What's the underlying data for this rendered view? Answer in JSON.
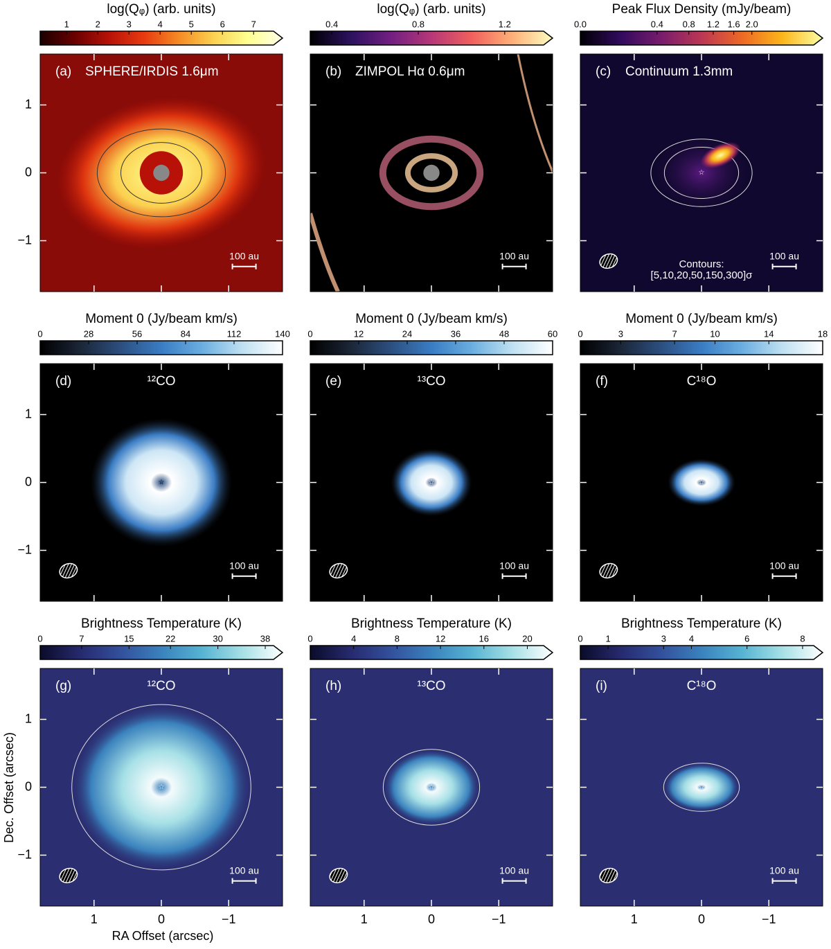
{
  "axes": {
    "xlabel": "RA Offset (arcsec)",
    "ylabel": "Dec. Offset (arcsec)",
    "xlim": [
      1.8,
      -1.8
    ],
    "ylim": [
      -1.75,
      1.75
    ],
    "xticks": [
      1,
      0,
      {
        "value": -1,
        "label": "−1"
      }
    ],
    "yticks": [
      1,
      0,
      {
        "value": -1,
        "label": "−1"
      }
    ]
  },
  "panels": [
    {
      "letter": "(a)",
      "title": "SPHERE/IRDIS 1.6μm",
      "scale_bar": "100 au",
      "beam": false,
      "colorbar": {
        "label": "log(Qᵩ) (arb. units)",
        "clim": [
          0.15,
          7.64
        ],
        "stretch": "linear",
        "extend": true,
        "cmap": [
          "#1a0000",
          "#6a0000",
          "#b81208",
          "#e83a10",
          "#f58a25",
          "#fbd050",
          "#ffff90",
          "#ffffe8"
        ],
        "ticks": [
          1,
          2,
          3,
          4,
          5,
          6,
          7
        ]
      }
    },
    {
      "letter": "(b)",
      "title": "ZIMPOL Hα 0.6μm",
      "scale_bar": "100 au",
      "beam": false,
      "colorbar": {
        "label": "log(Qᵩ) (arb. units)",
        "clim": [
          0.3,
          1.38
        ],
        "stretch": "linear",
        "extend": true,
        "cmap": [
          "#000004",
          "#2c115f",
          "#721f81",
          "#b73779",
          "#f1605d",
          "#feb078",
          "#fcfdbf"
        ],
        "ticks": [
          0.4,
          0.8,
          1.2
        ]
      }
    },
    {
      "letter": "(c)",
      "title": "Continuum 1.3mm",
      "scale_bar": "100 au",
      "beam": true,
      "contours_note": [
        "Contours:",
        "[5,10,20,50,150,300]σ"
      ],
      "colorbar": {
        "label": "Peak Flux Density (mJy/beam)",
        "clim": [
          0,
          3.7
        ],
        "stretch": "sqrt",
        "extend": true,
        "cmap": [
          "#000004",
          "#320a5e",
          "#781c6d",
          "#bc3754",
          "#ed6925",
          "#fbb61a",
          "#fcffa4"
        ],
        "ticks": [
          {
            "value": 0,
            "label": "0.0"
          },
          0.4,
          0.8,
          1.2,
          1.6,
          {
            "value": 2,
            "label": "2.0"
          }
        ]
      }
    },
    {
      "letter": "(d)",
      "title": "¹²CO",
      "scale_bar": "100 au",
      "beam": true,
      "colorbar": {
        "label": "Moment 0 (Jy/beam km/s)",
        "clim": [
          0,
          140
        ],
        "stretch": "linear",
        "extend": false,
        "cmap": [
          "#000000",
          "#1b2638",
          "#2c4f80",
          "#3a7cc4",
          "#6aaee0",
          "#bfe0f2",
          "#ffffff"
        ],
        "ticks": [
          0,
          28,
          56,
          84,
          112,
          140
        ]
      }
    },
    {
      "letter": "(e)",
      "title": "¹³CO",
      "scale_bar": "100 au",
      "beam": true,
      "colorbar": {
        "label": "Moment 0 (Jy/beam km/s)",
        "clim": [
          0,
          60
        ],
        "stretch": "linear",
        "extend": false,
        "cmap": [
          "#000000",
          "#1b2638",
          "#2c4f80",
          "#3a7cc4",
          "#6aaee0",
          "#bfe0f2",
          "#ffffff"
        ],
        "ticks": [
          0,
          12,
          24,
          36,
          48,
          60
        ]
      }
    },
    {
      "letter": "(f)",
      "title": "C¹⁸O",
      "scale_bar": "100 au",
      "beam": true,
      "colorbar": {
        "label": "Moment 0 (Jy/beam km/s)",
        "clim": [
          0,
          18
        ],
        "stretch": "linear",
        "extend": false,
        "cmap": [
          "#000000",
          "#1b2638",
          "#2c4f80",
          "#3a7cc4",
          "#6aaee0",
          "#bfe0f2",
          "#ffffff"
        ],
        "ticks": [
          0,
          3,
          7,
          10,
          14,
          18
        ]
      }
    },
    {
      "letter": "(g)",
      "title": "¹²CO",
      "scale_bar": "100 au",
      "beam": true,
      "colorbar": {
        "label": "Brightness Temperature (K)",
        "clim": [
          0,
          39.4
        ],
        "stretch": "linear",
        "extend": true,
        "cmap": [
          "#0b0b2a",
          "#262a6e",
          "#33509c",
          "#3a82bd",
          "#56b3d2",
          "#a6e0e6",
          "#ffffff"
        ],
        "ticks": [
          0,
          7,
          15,
          22,
          30,
          38
        ]
      }
    },
    {
      "letter": "(h)",
      "title": "¹³CO",
      "scale_bar": "100 au",
      "beam": true,
      "colorbar": {
        "label": "Brightness Temperature (K)",
        "clim": [
          0,
          21.5
        ],
        "stretch": "linear",
        "extend": true,
        "cmap": [
          "#0b0b2a",
          "#262a6e",
          "#33509c",
          "#3a82bd",
          "#56b3d2",
          "#a6e0e6",
          "#ffffff"
        ],
        "ticks": [
          0,
          4,
          8,
          12,
          16,
          20
        ]
      }
    },
    {
      "letter": "(i)",
      "title": "C¹⁸O",
      "scale_bar": "100 au",
      "beam": true,
      "colorbar": {
        "label": "Brightness Temperature (K)",
        "clim": [
          0,
          8.4
        ],
        "stretch": "linear",
        "extend": true,
        "cmap": [
          "#0b0b2a",
          "#262a6e",
          "#33509c",
          "#3a82bd",
          "#56b3d2",
          "#a6e0e6",
          "#ffffff"
        ],
        "ticks": [
          0,
          1,
          3,
          4,
          6,
          8
        ]
      }
    }
  ]
}
